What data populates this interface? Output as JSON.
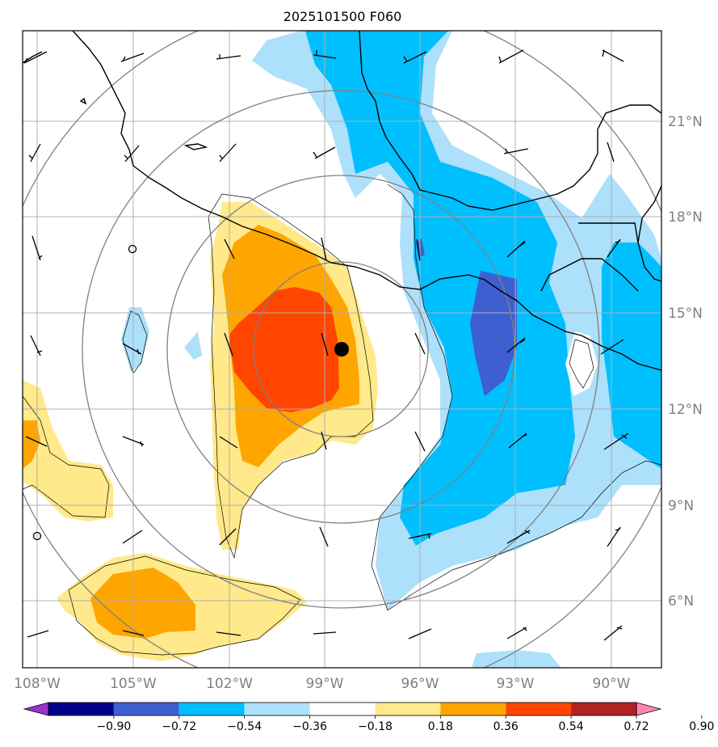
{
  "title": "2025101500 F060",
  "latitude_labels": [
    "21°N",
    "18°N",
    "15°N",
    "12°N",
    "9°N",
    "6°N"
  ],
  "longitude_labels": [
    "108°W",
    "105°W",
    "102°W",
    "99°W",
    "96°W",
    "93°W",
    "90°W"
  ],
  "colorbar": {
    "tick_labels": [
      "−0.90",
      "−0.72",
      "−0.54",
      "−0.36",
      "−0.18",
      "0.18",
      "0.36",
      "0.54",
      "0.72",
      "0.90"
    ],
    "colors": [
      "#9933cc",
      "#00008b",
      "#3e5fcf",
      "#00bfff",
      "#ade0fb",
      "#ffffff",
      "#ffe98a",
      "#ffa500",
      "#ff4500",
      "#b22222",
      "#ff88aa"
    ]
  },
  "colors": {
    "positive_1": "#ffe98a",
    "positive_2": "#ffa500",
    "positive_3": "#ff4500",
    "negative_1": "#ade0fb",
    "negative_2": "#00bfff",
    "negative_3": "#3e5fcf",
    "gridline": "#b0b0b0",
    "range_rings": "#808080",
    "coastline": "#000000"
  },
  "storm_center_marker": "filled-black-circle"
}
